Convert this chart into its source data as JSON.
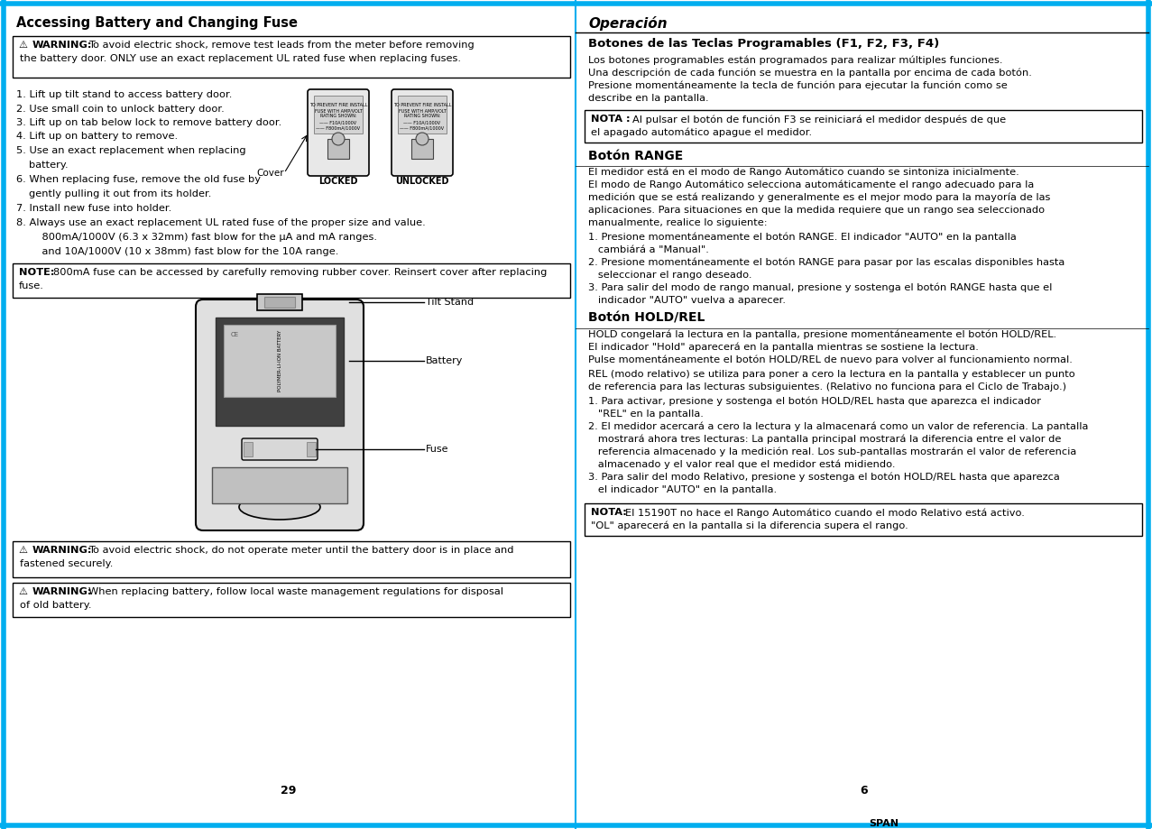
{
  "bg_outer": "#ffffff",
  "border_color": "#00aeef",
  "divider_color": "#00aeef",
  "span_label": "SPAN",
  "left_title": "Accessing Battery and Changing Fuse",
  "left_warning1_bold": "WARNING:",
  "left_warning1_text": "To avoid electric shock, remove test leads from the meter before removing\nthe battery door. ONLY use an exact replacement UL rated fuse when replacing fuses.",
  "left_steps_1_4": [
    "1. Lift up tilt stand to access battery door.",
    "2. Use small coin to unlock battery door.",
    "3. Lift up on tab below lock to remove battery door.",
    "4. Lift up on battery to remove."
  ],
  "left_step5a": "5. Use an exact replacement when replacing",
  "left_step5b": "    battery.",
  "left_step6a": "6. When replacing fuse, remove the old fuse by",
  "left_step6b": "    gently pulling it out from its holder.",
  "cover_label": "Cover",
  "locked_label": "LOCKED",
  "unlocked_label": "UNLOCKED",
  "left_step7": "7. Install new fuse into holder.",
  "left_step8a": "8. Always use an exact replacement UL rated fuse of the proper size and value.",
  "left_step8b": "    800mA/1000V (6.3 x 32mm) fast blow for the μA and mA ranges.",
  "left_step8c": "    and 10A/1000V (10 x 38mm) fast blow for the 10A range.",
  "left_note_bold": "NOTE:",
  "left_note_text": " 800mA fuse can be accessed by carefully removing rubber cover. Reinsert cover after replacing\nfuse.",
  "diag_tilt_label": "Tilt Stand",
  "diag_batt_label": "Battery",
  "diag_fuse_label": "Fuse",
  "diag_batt_text": "POLYMER-LI-ION BATTERY",
  "left_warning2_bold": "WARNING:",
  "left_warning2_text": "To avoid electric shock, do not operate meter until the battery door is in place and\nfastened securely.",
  "left_warning3_bold": "WARNING:",
  "left_warning3_text": "When replacing battery, follow local waste management regulations for disposal\nof old battery.",
  "left_page": "29",
  "right_title": "Operación",
  "right_s1_title": "Botones de las Teclas Programables (F1, F2, F3, F4)",
  "right_s1_body": [
    "Los botones programables están programados para realizar múltiples funciones.",
    "Una descripción de cada función se muestra en la pantalla por encima de cada botón.",
    "Presione momentáneamente la tecla de función para ejecutar la función como se",
    "describe en la pantalla."
  ],
  "right_nota1_bold": "NOTA :",
  "right_nota1_text": " Al pulsar el botón de función F3 se reiniciará el medidor después de que\nel apagado automático apague el medidor.",
  "right_s2_title": "Botón RANGE",
  "right_s2_body": [
    "El medidor está en el modo de Rango Automático cuando se sintoniza inicialmente.",
    "El modo de Rango Automático selecciona automáticamente el rango adecuado para la",
    "medición que se está realizando y generalmente es el mejor modo para la mayoría de las",
    "aplicaciones. Para situaciones en que la medida requiere que un rango sea seleccionado",
    "manualmente, realice lo siguiente:"
  ],
  "right_s2_items": [
    [
      "1. Presione momentáneamente el botón ",
      "RANGE.",
      " El indicador ",
      "\"AUTO\"",
      " en la pantalla"
    ],
    [
      "   cambiárá a ",
      "\"Manual\"."
    ],
    [
      "2. Presione momentáneamente el botón ",
      "RANGE",
      " para pasar por las escalas disponibles hasta"
    ],
    [
      "   seleccionar el rango deseado."
    ],
    [
      "3. Para salir del modo de rango manual, presione y sostenga el botón ",
      "RANGE",
      " hasta que el"
    ],
    [
      "   indicador ",
      "\"AUTO\"",
      " vuelva a aparecer."
    ]
  ],
  "right_s2_items_plain": [
    "1. Presione momentáneamente el botón RANGE. El indicador \"AUTO\" en la pantalla",
    "   cambiárá a \"Manual\".",
    "2. Presione momentáneamente el botón RANGE para pasar por las escalas disponibles hasta",
    "   seleccionar el rango deseado.",
    "3. Para salir del modo de rango manual, presione y sostenga el botón RANGE hasta que el",
    "   indicador \"AUTO\" vuelva a aparecer."
  ],
  "right_s3_title": "Botón HOLD/REL",
  "right_s3_body1": [
    "HOLD congelará la lectura en la pantalla, presione momentáneamente el botón HOLD/REL.",
    "El indicador \"Hold\" aparecerá en la pantalla mientras se sostiene la lectura.",
    "Pulse momentáneamente el botón HOLD/REL de nuevo para volver al funcionamiento normal."
  ],
  "right_s3_body2": [
    "REL (modo relativo) se utiliza para poner a cero la lectura en la pantalla y establecer un punto",
    "de referencia para las lecturas subsiguientes. (Relativo no funciona para el Ciclo de Trabajo.)"
  ],
  "right_s3_items": [
    "1. Para activar, presione y sostenga el botón HOLD/REL hasta que aparezca el indicador",
    "   \"REL\" en la pantalla.",
    "2. El medidor acercará a cero la lectura y la almacenará como un valor de referencia. La pantalla",
    "   mostrará ahora tres lecturas: La pantalla principal mostrará la diferencia entre el valor de",
    "   referencia almacenado y la medición real. Los sub-pantallas mostrarán el valor de referencia",
    "   almacenado y el valor real que el medidor está midiendo.",
    "3. Para salir del modo Relativo, presione y sostenga el botón HOLD/REL hasta que aparezca",
    "   el indicador \"AUTO\" en la pantalla."
  ],
  "right_nota2_bold": "NOTA:",
  "right_nota2_text": " El 15190T no hace el Rango Automático cuando el modo Relativo está activo.\n\"OL\" aparecerá en la pantalla si la diferencia supera el rango.",
  "right_page": "6"
}
